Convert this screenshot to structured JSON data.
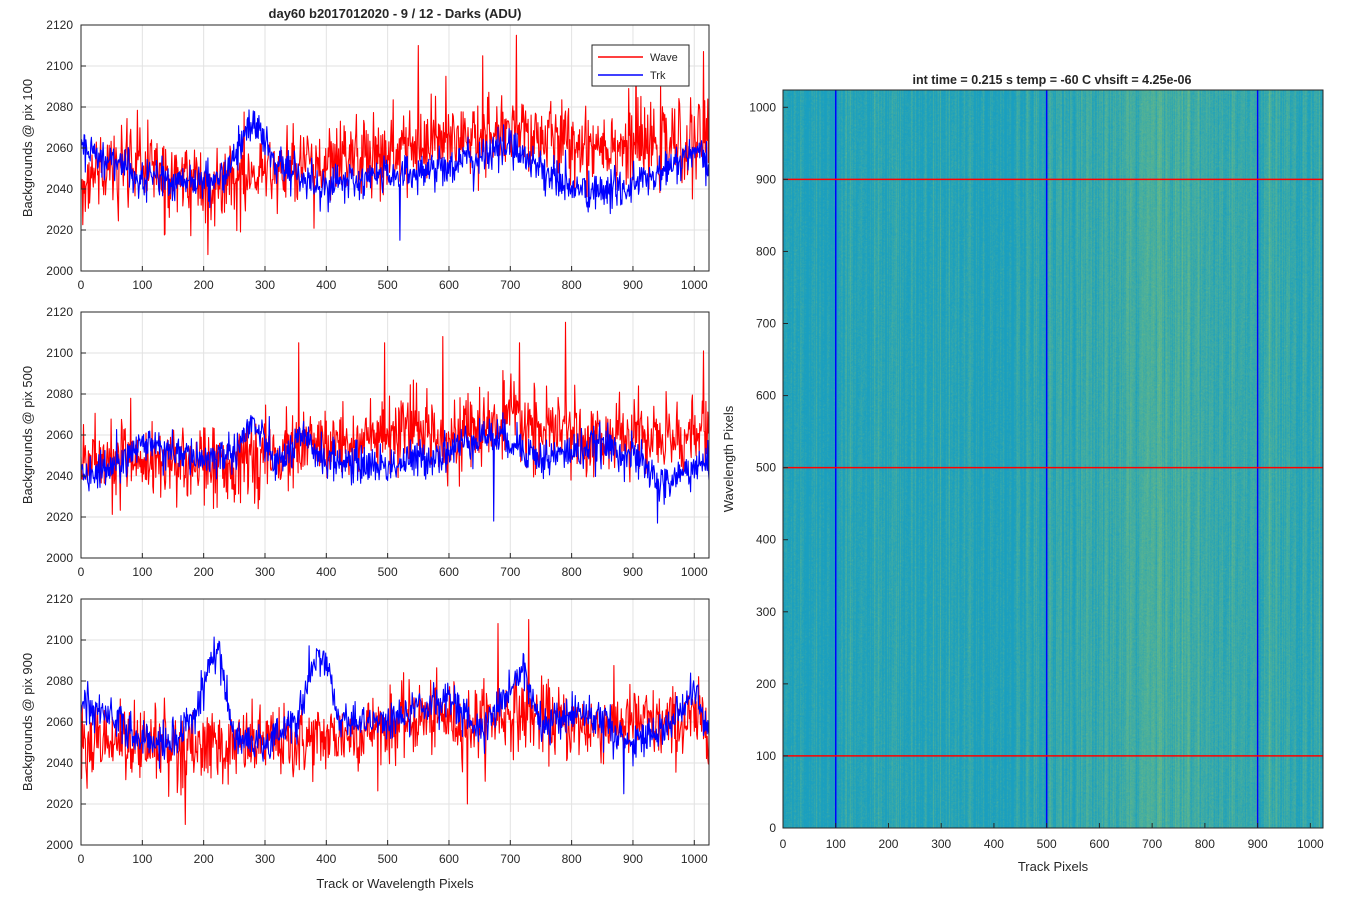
{
  "figure": {
    "title": "day60 b2017012020 - 9 / 12 - Darks (ADU)",
    "shared_xlabel": "Track or Wavelength Pixels"
  },
  "chart_data": [
    {
      "type": "line",
      "ylabel": "Backgrounds @ pix 100",
      "xlim": [
        0,
        1024
      ],
      "ylim": [
        2000,
        2120
      ],
      "xticks": [
        0,
        100,
        200,
        300,
        400,
        500,
        600,
        700,
        800,
        900,
        1000
      ],
      "yticks": [
        2000,
        2020,
        2040,
        2060,
        2080,
        2100,
        2120
      ],
      "grid": true,
      "legend_position": "top-right",
      "series": [
        {
          "name": "Wave",
          "color": "#ff0000",
          "x": [
            0,
            50,
            100,
            150,
            200,
            250,
            300,
            350,
            400,
            450,
            500,
            550,
            600,
            650,
            700,
            750,
            800,
            850,
            900,
            950,
            1000,
            1024
          ],
          "values": [
            2045,
            2050,
            2052,
            2047,
            2044,
            2046,
            2048,
            2050,
            2052,
            2055,
            2056,
            2060,
            2062,
            2064,
            2068,
            2065,
            2062,
            2063,
            2060,
            2061,
            2062,
            2064
          ],
          "noise": 12,
          "spikes": [
            [
              137,
              2018
            ],
            [
              207,
              2008
            ],
            [
              550,
              2110
            ],
            [
              595,
              2095
            ],
            [
              655,
              2105
            ],
            [
              710,
              2115
            ],
            [
              905,
              2108
            ],
            [
              1015,
              2107
            ]
          ]
        },
        {
          "name": "Trk",
          "color": "#0000ff",
          "x": [
            0,
            40,
            100,
            150,
            200,
            240,
            280,
            320,
            360,
            400,
            450,
            500,
            550,
            600,
            650,
            700,
            750,
            800,
            850,
            900,
            950,
            1000,
            1024
          ],
          "values": [
            2062,
            2055,
            2045,
            2043,
            2044,
            2050,
            2073,
            2053,
            2045,
            2042,
            2043,
            2048,
            2048,
            2052,
            2055,
            2062,
            2050,
            2040,
            2038,
            2042,
            2048,
            2058,
            2050
          ],
          "noise": 6,
          "spikes": [
            [
              520,
              2015
            ]
          ]
        }
      ]
    },
    {
      "type": "line",
      "ylabel": "Backgrounds @ pix 500",
      "xlim": [
        0,
        1024
      ],
      "ylim": [
        2000,
        2120
      ],
      "xticks": [
        0,
        100,
        200,
        300,
        400,
        500,
        600,
        700,
        800,
        900,
        1000
      ],
      "yticks": [
        2000,
        2020,
        2040,
        2060,
        2080,
        2100,
        2120
      ],
      "grid": true,
      "series": [
        {
          "name": "Wave",
          "color": "#ff0000",
          "x": [
            0,
            50,
            100,
            150,
            200,
            250,
            300,
            350,
            400,
            450,
            500,
            550,
            600,
            650,
            700,
            750,
            800,
            850,
            900,
            950,
            1000,
            1024
          ],
          "values": [
            2050,
            2050,
            2049,
            2047,
            2045,
            2045,
            2048,
            2053,
            2055,
            2058,
            2058,
            2063,
            2060,
            2062,
            2068,
            2062,
            2060,
            2058,
            2060,
            2058,
            2060,
            2062
          ],
          "noise": 11,
          "spikes": [
            [
              355,
              2105
            ],
            [
              495,
              2105
            ],
            [
              590,
              2108
            ],
            [
              715,
              2105
            ],
            [
              790,
              2115
            ],
            [
              1015,
              2101
            ]
          ]
        },
        {
          "name": "Trk",
          "color": "#0000ff",
          "x": [
            0,
            50,
            100,
            150,
            200,
            250,
            280,
            320,
            360,
            400,
            450,
            500,
            550,
            600,
            650,
            700,
            750,
            800,
            850,
            900,
            950,
            1000,
            1024
          ],
          "values": [
            2040,
            2045,
            2055,
            2053,
            2048,
            2052,
            2066,
            2045,
            2058,
            2048,
            2046,
            2045,
            2048,
            2052,
            2060,
            2058,
            2048,
            2052,
            2055,
            2050,
            2035,
            2045,
            2045
          ],
          "noise": 6,
          "spikes": [
            [
              673,
              2018
            ],
            [
              940,
              2017
            ]
          ]
        }
      ]
    },
    {
      "type": "line",
      "ylabel": "Backgrounds @ pix 900",
      "xlabel": "Track or Wavelength Pixels",
      "xlim": [
        0,
        1024
      ],
      "ylim": [
        2000,
        2120
      ],
      "xticks": [
        0,
        100,
        200,
        300,
        400,
        500,
        600,
        700,
        800,
        900,
        1000
      ],
      "yticks": [
        2000,
        2020,
        2040,
        2060,
        2080,
        2100,
        2120
      ],
      "grid": true,
      "series": [
        {
          "name": "Wave",
          "color": "#ff0000",
          "x": [
            0,
            50,
            100,
            150,
            200,
            250,
            300,
            350,
            400,
            450,
            500,
            550,
            600,
            650,
            700,
            750,
            800,
            850,
            900,
            950,
            1000,
            1024
          ],
          "values": [
            2050,
            2052,
            2050,
            2048,
            2047,
            2048,
            2050,
            2050,
            2052,
            2055,
            2058,
            2062,
            2062,
            2060,
            2065,
            2062,
            2058,
            2058,
            2060,
            2058,
            2060,
            2062
          ],
          "noise": 11,
          "spikes": [
            [
              170,
              2010
            ],
            [
              630,
              2020
            ],
            [
              680,
              2108
            ],
            [
              730,
              2110
            ]
          ]
        },
        {
          "name": "Trk",
          "color": "#0000ff",
          "x": [
            0,
            50,
            100,
            150,
            180,
            210,
            225,
            250,
            300,
            350,
            380,
            395,
            420,
            450,
            500,
            550,
            600,
            650,
            700,
            720,
            750,
            800,
            850,
            900,
            950,
            1000,
            1024
          ],
          "values": [
            2068,
            2065,
            2050,
            2050,
            2060,
            2090,
            2095,
            2050,
            2050,
            2060,
            2088,
            2095,
            2062,
            2060,
            2060,
            2068,
            2070,
            2055,
            2075,
            2085,
            2060,
            2065,
            2062,
            2050,
            2055,
            2075,
            2055
          ],
          "noise": 6,
          "spikes": [
            [
              885,
              2025
            ]
          ]
        }
      ]
    },
    {
      "type": "heatmap",
      "title": "int time = 0.215 s   temp = -60 C   vhsift = 4.25e-06",
      "xlabel": "Track Pixels",
      "ylabel": "Wavelength Pixels",
      "xlim": [
        0,
        1024
      ],
      "ylim": [
        0,
        1024
      ],
      "xticks": [
        0,
        100,
        200,
        300,
        400,
        500,
        600,
        700,
        800,
        900,
        1000
      ],
      "yticks": [
        0,
        100,
        200,
        300,
        400,
        500,
        600,
        700,
        800,
        900,
        1000
      ],
      "colormap": "parula",
      "base_color": "#1a9fc0",
      "bright_color": "#8fc46a",
      "bright_region_x": [
        500,
        1024
      ],
      "bright_streak_center_x": 720,
      "vertical_markers": {
        "x": [
          100,
          500,
          900
        ],
        "color": "#0000ff"
      },
      "horizontal_markers": {
        "y": [
          100,
          500,
          900
        ],
        "color": "#ff0000"
      }
    }
  ]
}
